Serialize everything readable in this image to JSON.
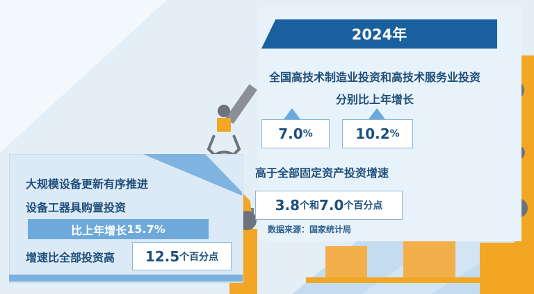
{
  "right": {
    "year_banner": "2024年",
    "headline": "全国高技术制造业投资和高技术服务业投资",
    "subline": "分别比上年增长",
    "values": [
      {
        "num": "7.0",
        "unit": "%"
      },
      {
        "num": "10.2",
        "unit": "%"
      }
    ],
    "compare_line": "高于全部固定资产投资增速",
    "compare_value": {
      "num1": "3.8",
      "mid": "个和",
      "num2": "7.0",
      "unit": "个百分点"
    },
    "source": "数据来源：国家统计局"
  },
  "left": {
    "line1": "大规模设备更新有序推进",
    "line2": "设备工器具购置投资",
    "growth_label": "比上年增长",
    "growth_value": "15.7%",
    "compare_label": "增速比全部投资高",
    "compare_num": "12.5",
    "compare_unit": "个百分点"
  },
  "colors": {
    "banner": "#1a609f",
    "accent_blue": "#6ea9db",
    "robot_orange": "#f2a623",
    "text": "#1d4f7c"
  }
}
